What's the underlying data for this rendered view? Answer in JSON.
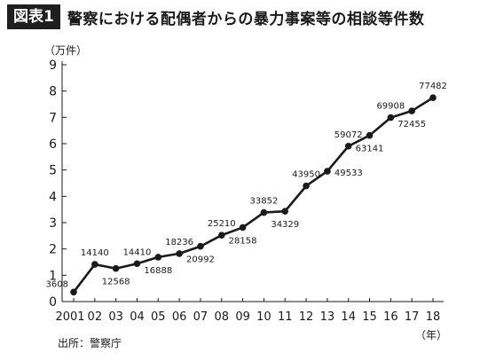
{
  "header": {
    "figure_label": "図表1",
    "title": "警察における配偶者からの暴力事案等の相談等件数"
  },
  "unit_label": "（万件）",
  "year_unit_label": "（年）",
  "source": "出所：警察庁",
  "chart_data": {
    "type": "line",
    "title": "警察における配偶者からの暴力事案等の相談等件数",
    "ylabel": "（万件）",
    "xlabel": "（年）",
    "ylim": [
      0,
      9
    ],
    "yticks": [
      "0",
      "1",
      "2",
      "3",
      "4",
      "5",
      "6",
      "7",
      "8",
      "9"
    ],
    "categories": [
      "2001",
      "02",
      "03",
      "04",
      "05",
      "06",
      "07",
      "08",
      "09",
      "10",
      "11",
      "12",
      "13",
      "14",
      "15",
      "16",
      "17",
      "18"
    ],
    "values": [
      3608,
      14140,
      12568,
      14410,
      16888,
      18236,
      20992,
      25210,
      28158,
      33852,
      34329,
      43950,
      49533,
      59072,
      63141,
      69908,
      72455,
      77482
    ],
    "value_labels": [
      "3608",
      "14140",
      "12568",
      "14410",
      "16888",
      "18236",
      "20992",
      "25210",
      "28158",
      "33852",
      "34329",
      "43950",
      "49533",
      "59072",
      "63141",
      "69908",
      "72455",
      "77482"
    ],
    "label_positions": [
      "left",
      "above",
      "below",
      "above",
      "below",
      "above",
      "below",
      "above",
      "below",
      "above",
      "below",
      "above",
      "right",
      "above",
      "below",
      "above",
      "below",
      "above"
    ],
    "grid": false,
    "line_color": "#1a1a1a"
  }
}
